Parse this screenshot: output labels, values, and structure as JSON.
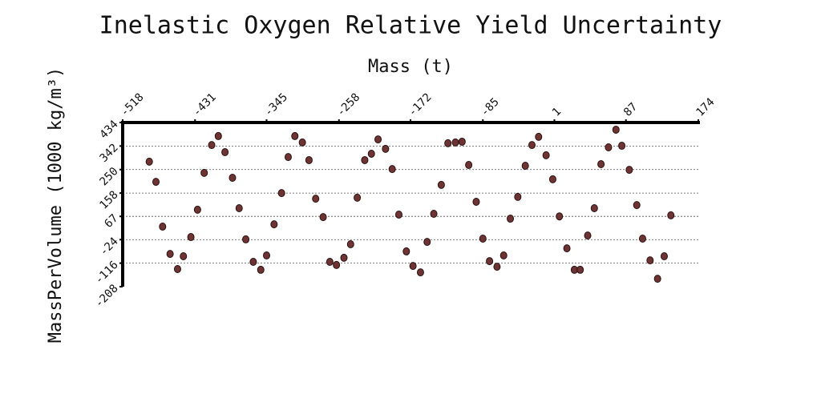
{
  "chart_data": {
    "type": "scatter",
    "title": "Inelastic Oxygen Relative Yield Uncertainty",
    "x_label": "Mass (t)",
    "y_label": "MassPerVolume (1000 kg/m³)",
    "color": "#6e3434",
    "grid": true,
    "xlim": [
      -518,
      174
    ],
    "xticks": [
      -518,
      -431,
      -345,
      -258,
      -172,
      -85,
      1,
      87,
      174
    ],
    "ylim": [
      -208,
      434
    ],
    "yticks": [
      434,
      342,
      250,
      158,
      67,
      -24,
      -116,
      -208
    ],
    "x": [
      -486,
      -478,
      -470,
      -461,
      -452,
      -445,
      -436,
      -428,
      -420,
      -411,
      -403,
      -395,
      -386,
      -378,
      -370,
      -361,
      -352,
      -345,
      -336,
      -327,
      -319,
      -311,
      -302,
      -294,
      -286,
      -277,
      -269,
      -261,
      -252,
      -244,
      -236,
      -227,
      -219,
      -211,
      -202,
      -194,
      -186,
      -177,
      -169,
      -160,
      -152,
      -144,
      -135,
      -127,
      -118,
      -110,
      -102,
      -93,
      -85,
      -77,
      -68,
      -60,
      -52,
      -43,
      -34,
      -26,
      -18,
      -9,
      -1,
      7,
      16,
      25,
      32,
      41,
      49,
      57,
      66,
      75,
      82,
      91,
      100,
      107,
      116,
      125,
      133,
      141
    ],
    "values": [
      281,
      202,
      27,
      -80,
      -139,
      -89,
      -14,
      93,
      237,
      346,
      381,
      318,
      218,
      99,
      -23,
      -111,
      -142,
      -86,
      36,
      158,
      299,
      381,
      356,
      287,
      136,
      64,
      -111,
      -123,
      -95,
      -42,
      140,
      287,
      312,
      368,
      331,
      252,
      74,
      -70,
      -127,
      -152,
      -33,
      77,
      190,
      353,
      356,
      359,
      268,
      124,
      -20,
      -108,
      -130,
      -86,
      58,
      143,
      265,
      346,
      378,
      306,
      212,
      67,
      -58,
      -142,
      -142,
      -8,
      99,
      271,
      337,
      406,
      343,
      249,
      111,
      -20,
      -105,
      -177,
      -89,
      71
    ]
  }
}
